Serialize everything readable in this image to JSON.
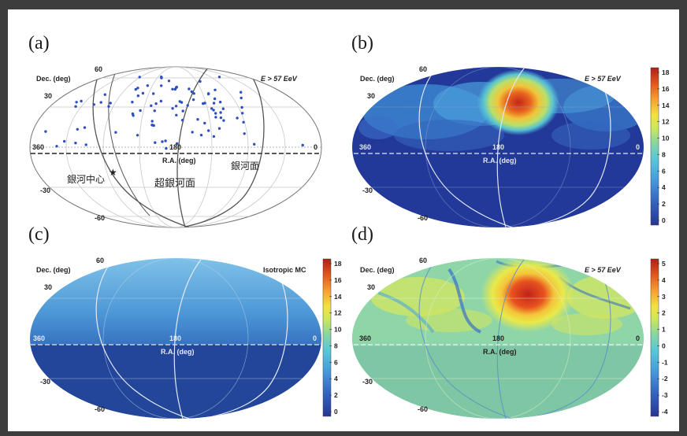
{
  "panels": [
    {
      "id": "a",
      "label": "(a)",
      "dec_label": "Dec. (deg)",
      "energy": "E > 57 EeV",
      "ra_label": "R.A. (deg)",
      "dec_ticks": [
        "60",
        "30",
        "-30",
        "-60"
      ],
      "ra_ticks": [
        "360",
        "180",
        "0"
      ],
      "annotations": {
        "galactic_center": "銀河中心",
        "supergalactic_plane": "超銀河面",
        "galactic_plane": "銀河面"
      }
    },
    {
      "id": "b",
      "label": "(b)",
      "dec_label": "Dec. (deg)",
      "energy": "E > 57 EeV",
      "ra_label": "R.A. (deg)",
      "dec_ticks": [
        "60",
        "30",
        "-30",
        "-60"
      ],
      "ra_ticks": [
        "360",
        "180",
        "0"
      ],
      "colorbar_ticks": [
        "18",
        "16",
        "14",
        "12",
        "10",
        "8",
        "6",
        "4",
        "2",
        "0"
      ],
      "colorbar_colors": [
        "#2b3a98",
        "#3b70c8",
        "#4fa6dd",
        "#5cc7d8",
        "#7fd6a8",
        "#c8e85a",
        "#f2e63d",
        "#f6a02c",
        "#e8561f",
        "#b82016"
      ]
    },
    {
      "id": "c",
      "label": "(c)",
      "dec_label": "Dec. (deg)",
      "energy": "Isotropic MC",
      "ra_label": "R.A. (deg)",
      "dec_ticks": [
        "60",
        "30",
        "-30",
        "-60"
      ],
      "ra_ticks": [
        "360",
        "180",
        "0"
      ],
      "colorbar_ticks": [
        "18",
        "16",
        "14",
        "12",
        "10",
        "8",
        "6",
        "4",
        "2",
        "0"
      ],
      "colorbar_colors": [
        "#2b3a98",
        "#3b70c8",
        "#4fa6dd",
        "#5cc7d8",
        "#7fd6a8",
        "#c8e85a",
        "#f2e63d",
        "#f6a02c",
        "#e8561f",
        "#b82016"
      ]
    },
    {
      "id": "d",
      "label": "(d)",
      "dec_label": "Dec. (deg)",
      "energy": "E > 57 EeV",
      "ra_label": "R.A. (deg)",
      "dec_ticks": [
        "60",
        "30",
        "-30",
        "-60"
      ],
      "ra_ticks": [
        "360",
        "180",
        "0"
      ],
      "colorbar_ticks": [
        "5",
        "4",
        "3",
        "2",
        "1",
        "0",
        "-1",
        "-2",
        "-3",
        "-4"
      ],
      "colorbar_colors": [
        "#2b3a98",
        "#3b70c8",
        "#4fa6dd",
        "#5cc7d8",
        "#7fd6a8",
        "#c8e85a",
        "#f2e63d",
        "#f6a02c",
        "#e8561f",
        "#b82016"
      ]
    }
  ]
}
